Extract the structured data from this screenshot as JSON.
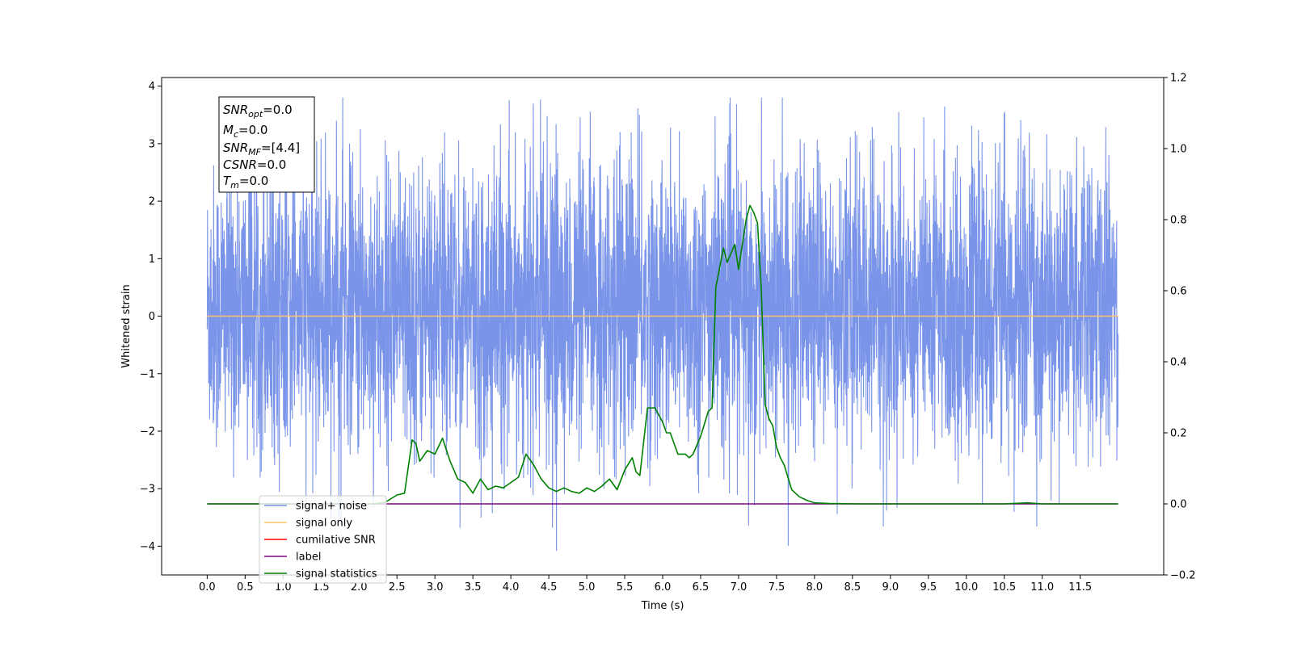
{
  "chart_data": {
    "type": "line",
    "xlabel": "Time (s)",
    "ylabel": "Whitened strain",
    "xlim": [
      -0.6,
      12.6
    ],
    "ylim": [
      -4.5,
      4.15
    ],
    "y2lim": [
      -0.2,
      1.2
    ],
    "grid": false,
    "x_ticks": [
      "0.0",
      "0.5",
      "1.0",
      "1.5",
      "2.0",
      "2.5",
      "3.0",
      "3.5",
      "4.0",
      "4.5",
      "5.0",
      "5.5",
      "6.0",
      "6.5",
      "7.0",
      "7.5",
      "8.0",
      "8.5",
      "9.0",
      "9.5",
      "10.0",
      "10.5",
      "11.0",
      "11.5"
    ],
    "y_ticks": [
      "−4",
      "−3",
      "−2",
      "−1",
      "0",
      "1",
      "2",
      "3",
      "4"
    ],
    "y2_ticks": [
      "−0.2",
      "0.0",
      "0.2",
      "0.4",
      "0.6",
      "0.8",
      "1.0",
      "1.2"
    ],
    "legend_placement": "lower-left",
    "legend": [
      {
        "name": "signal+ noise",
        "color": "#7994e8"
      },
      {
        "name": "signal only",
        "color": "#ffc46b"
      },
      {
        "name": "cumilative SNR",
        "color": "#ff0000"
      },
      {
        "name": "label",
        "color": "#800080"
      },
      {
        "name": "signal statistics",
        "color": "#008000"
      }
    ],
    "annotation": {
      "lines": [
        {
          "sym": "SNR",
          "sub": "opt",
          "val": "=0.0"
        },
        {
          "sym": "M",
          "sub": "c",
          "val": "=0.0"
        },
        {
          "sym": "SNR",
          "sub": "MF",
          "val": "=[4.4]"
        },
        {
          "sym": "CSNR",
          "sub": "",
          "val": "=0.0"
        },
        {
          "sym": "T",
          "sub": "m",
          "val": "=0.0"
        }
      ]
    },
    "series": [
      {
        "name": "signal+ noise",
        "axis": "left",
        "color": "#7994e8",
        "style": "dense noise",
        "x_range": [
          0.0,
          12.0
        ],
        "typical_range": [
          -1.8,
          2.1
        ],
        "extremes": [
          -4.1,
          3.8
        ]
      },
      {
        "name": "signal only",
        "axis": "left",
        "color": "#ffc46b",
        "x": [
          0.0,
          12.0
        ],
        "y": [
          0.0,
          0.0
        ]
      },
      {
        "name": "label",
        "axis": "right",
        "color": "#800080",
        "x": [
          0.0,
          12.0
        ],
        "y": [
          0.0,
          0.0
        ]
      },
      {
        "name": "signal statistics",
        "axis": "right",
        "color": "#008000",
        "x": [
          0.0,
          2.2,
          2.35,
          2.5,
          2.6,
          2.7,
          2.75,
          2.8,
          2.9,
          3.0,
          3.1,
          3.2,
          3.3,
          3.4,
          3.5,
          3.6,
          3.7,
          3.8,
          3.9,
          4.0,
          4.1,
          4.2,
          4.3,
          4.4,
          4.5,
          4.6,
          4.7,
          4.8,
          4.9,
          5.0,
          5.1,
          5.2,
          5.3,
          5.4,
          5.5,
          5.6,
          5.65,
          5.7,
          5.8,
          5.9,
          6.0,
          6.05,
          6.1,
          6.2,
          6.3,
          6.35,
          6.4,
          6.5,
          6.6,
          6.65,
          6.7,
          6.8,
          6.85,
          6.95,
          7.0,
          7.1,
          7.15,
          7.2,
          7.25,
          7.3,
          7.35,
          7.4,
          7.45,
          7.5,
          7.55,
          7.6,
          7.7,
          7.8,
          7.9,
          8.0,
          8.2,
          8.6,
          9.0,
          10.0,
          10.5,
          10.8,
          11.0,
          11.5,
          12.0
        ],
        "y": [
          0.0,
          0.0,
          0.005,
          0.025,
          0.03,
          0.18,
          0.17,
          0.12,
          0.15,
          0.14,
          0.185,
          0.12,
          0.07,
          0.06,
          0.03,
          0.07,
          0.04,
          0.05,
          0.045,
          0.06,
          0.075,
          0.14,
          0.11,
          0.07,
          0.045,
          0.035,
          0.045,
          0.035,
          0.03,
          0.045,
          0.035,
          0.05,
          0.07,
          0.04,
          0.095,
          0.13,
          0.09,
          0.08,
          0.27,
          0.27,
          0.23,
          0.2,
          0.2,
          0.14,
          0.14,
          0.13,
          0.14,
          0.19,
          0.26,
          0.27,
          0.61,
          0.72,
          0.68,
          0.73,
          0.66,
          0.8,
          0.84,
          0.82,
          0.79,
          0.6,
          0.28,
          0.24,
          0.22,
          0.16,
          0.13,
          0.11,
          0.04,
          0.02,
          0.01,
          0.003,
          0.001,
          0.0,
          0.0,
          0.0,
          0.0,
          0.003,
          0.0,
          0.0,
          0.0
        ]
      }
    ]
  }
}
